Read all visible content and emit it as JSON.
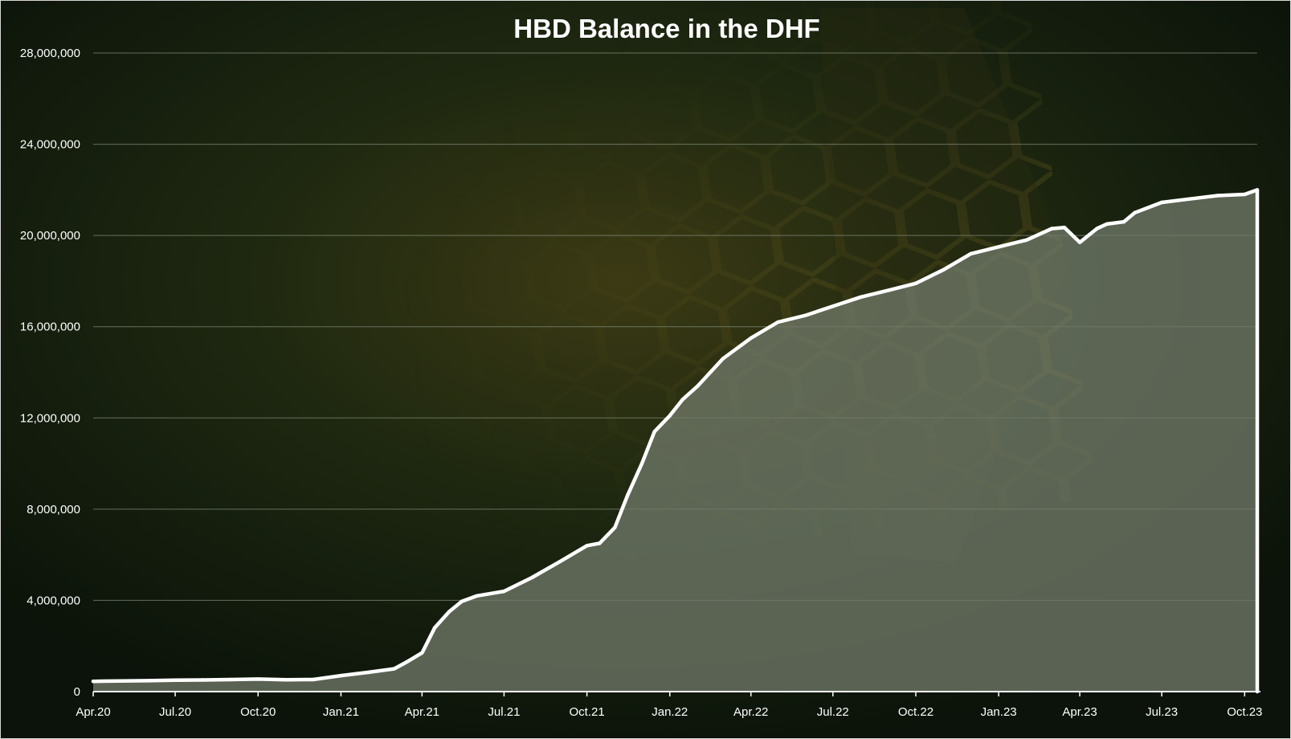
{
  "colors": {
    "background": "#0f1a0c",
    "line": "#ffffff",
    "area_fill": "#6f7868",
    "gridline": "#7f8a78",
    "accent_gold": "#8a7a2a"
  },
  "chart_data": {
    "type": "area",
    "title": "HBD Balance in the DHF",
    "xlabel": "",
    "ylabel": "",
    "ylim": [
      0,
      28000000
    ],
    "xlim": [
      "2020-04-01",
      "2023-10-15"
    ],
    "grid": true,
    "legend": "none",
    "y_ticks": [
      0,
      4000000,
      8000000,
      12000000,
      16000000,
      20000000,
      24000000,
      28000000
    ],
    "y_tick_labels": [
      "0",
      "4,000,000",
      "8,000,000",
      "12,000,000",
      "16,000,000",
      "20,000,000",
      "24,000,000",
      "28,000,000"
    ],
    "x_ticks": [
      "2020-04-01",
      "2020-07-01",
      "2020-10-01",
      "2021-01-01",
      "2021-04-01",
      "2021-07-01",
      "2021-10-01",
      "2022-01-01",
      "2022-04-01",
      "2022-07-01",
      "2022-10-01",
      "2023-01-01",
      "2023-04-01",
      "2023-07-01",
      "2023-10-01"
    ],
    "x_tick_labels": [
      "Apr.20",
      "Jul.20",
      "Oct.20",
      "Jan.21",
      "Apr.21",
      "Jul.21",
      "Oct.21",
      "Jan.22",
      "Apr.22",
      "Jul.22",
      "Oct.22",
      "Jan.23",
      "Apr.23",
      "Jul.23",
      "Oct.23"
    ],
    "series": [
      {
        "x": [
          "2020-04-01",
          "2020-05-01",
          "2020-06-01",
          "2020-07-01",
          "2020-08-01",
          "2020-09-01",
          "2020-10-01",
          "2020-11-01",
          "2020-12-01",
          "2021-01-01",
          "2021-02-01",
          "2021-03-01",
          "2021-03-15",
          "2021-04-01",
          "2021-04-15",
          "2021-05-01",
          "2021-05-15",
          "2021-06-01",
          "2021-07-01",
          "2021-08-01",
          "2021-09-01",
          "2021-10-01",
          "2021-10-15",
          "2021-11-01",
          "2021-11-15",
          "2021-12-01",
          "2021-12-15",
          "2022-01-01",
          "2022-01-15",
          "2022-02-01",
          "2022-02-15",
          "2022-03-01",
          "2022-04-01",
          "2022-05-01",
          "2022-06-01",
          "2022-07-01",
          "2022-08-01",
          "2022-09-01",
          "2022-10-01",
          "2022-11-01",
          "2022-12-01",
          "2023-01-01",
          "2023-02-01",
          "2023-03-01",
          "2023-03-15",
          "2023-04-01",
          "2023-04-20",
          "2023-05-01",
          "2023-05-20",
          "2023-06-01",
          "2023-07-01",
          "2023-08-01",
          "2023-09-01",
          "2023-10-01",
          "2023-10-15"
        ],
        "values": [
          450000,
          470000,
          480000,
          500000,
          510000,
          530000,
          550000,
          520000,
          530000,
          700000,
          850000,
          1000000,
          1300000,
          1700000,
          2800000,
          3500000,
          3950000,
          4200000,
          4400000,
          5000000,
          5700000,
          6400000,
          6500000,
          7200000,
          8600000,
          10000000,
          11400000,
          12100000,
          12800000,
          13400000,
          14000000,
          14600000,
          15500000,
          16200000,
          16500000,
          16900000,
          17300000,
          17600000,
          17900000,
          18500000,
          19200000,
          19500000,
          19800000,
          20300000,
          20350000,
          19700000,
          20300000,
          20500000,
          20600000,
          21000000,
          21450000,
          21600000,
          21750000,
          21800000,
          22000000
        ]
      }
    ]
  }
}
